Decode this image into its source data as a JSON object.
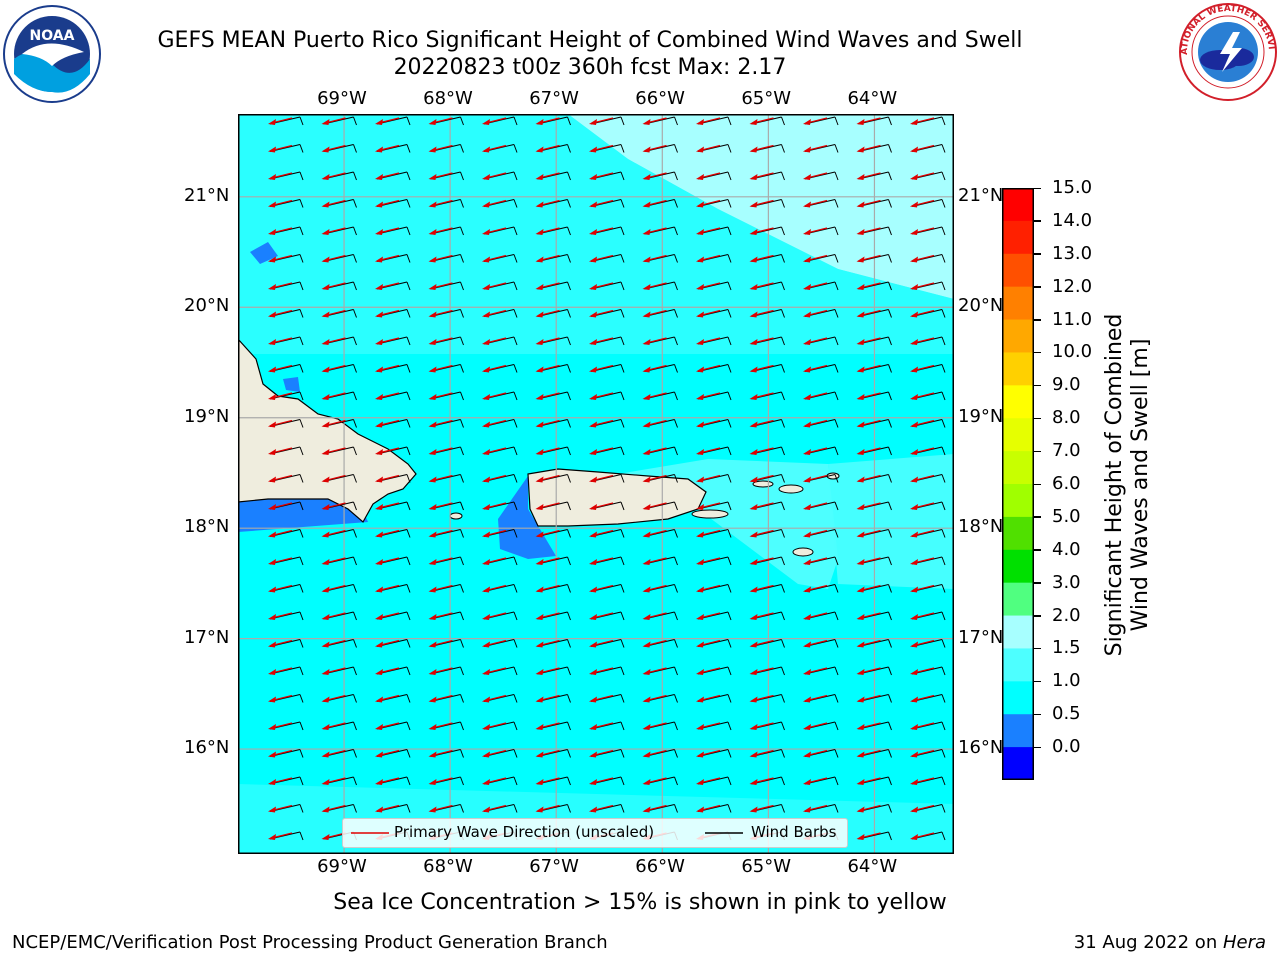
{
  "title": {
    "line1": "GEFS MEAN Puerto Rico Significant Height of Combined Wind Waves and Swell",
    "line2": "20220823 t00z 360h fcst   Max: 2.17"
  },
  "map": {
    "lon_labels": [
      "69°W",
      "68°W",
      "67°W",
      "66°W",
      "65°W",
      "64°W"
    ],
    "lat_labels": [
      "21°N",
      "20°N",
      "19°N",
      "18°N",
      "17°N",
      "16°N"
    ],
    "lon_range": [
      -70.0,
      -63.25
    ],
    "lat_range": [
      15.05,
      21.75
    ],
    "colors": {
      "ocean": "#00ffff",
      "band_1_5_2": "#4dffff",
      "band_2_3": "#a7ffff",
      "band_0_5_1": "#1a80ff",
      "land": "#efedde",
      "arrow": "#e00000",
      "barb": "#000000"
    }
  },
  "colorbar": {
    "labels": [
      "15.0",
      "14.0",
      "13.0",
      "12.0",
      "11.0",
      "10.0",
      "9.0",
      "8.0",
      "7.0",
      "6.0",
      "5.0",
      "4.0",
      "3.0",
      "2.0",
      "1.5",
      "1.0",
      "0.5",
      "0.0"
    ],
    "colors": [
      "#ff0000",
      "#ff2000",
      "#ff5000",
      "#ff8000",
      "#ffa800",
      "#ffd000",
      "#ffff00",
      "#e6ff00",
      "#c8ff00",
      "#a0ff00",
      "#50e000",
      "#00e000",
      "#50ff80",
      "#a7ffff",
      "#4dffff",
      "#00ffff",
      "#1a80ff",
      "#0000ff"
    ],
    "title_line1": "Significant Height of Combined",
    "title_line2": "Wind Waves and Swell [m]"
  },
  "legend": {
    "wave_direction": "Primary Wave Direction (unscaled)",
    "wind_barbs": "Wind Barbs"
  },
  "subnote": "Sea Ice Concentration > 15% is shown in pink to yellow",
  "footer": {
    "left": "NCEP/EMC/Verification Post Processing Product Generation Branch",
    "date": "31 Aug 2022 on ",
    "host": "Hera"
  },
  "logos": {
    "noaa": "NOAA",
    "nws": "NATIONAL WEATHER SERVICE"
  }
}
